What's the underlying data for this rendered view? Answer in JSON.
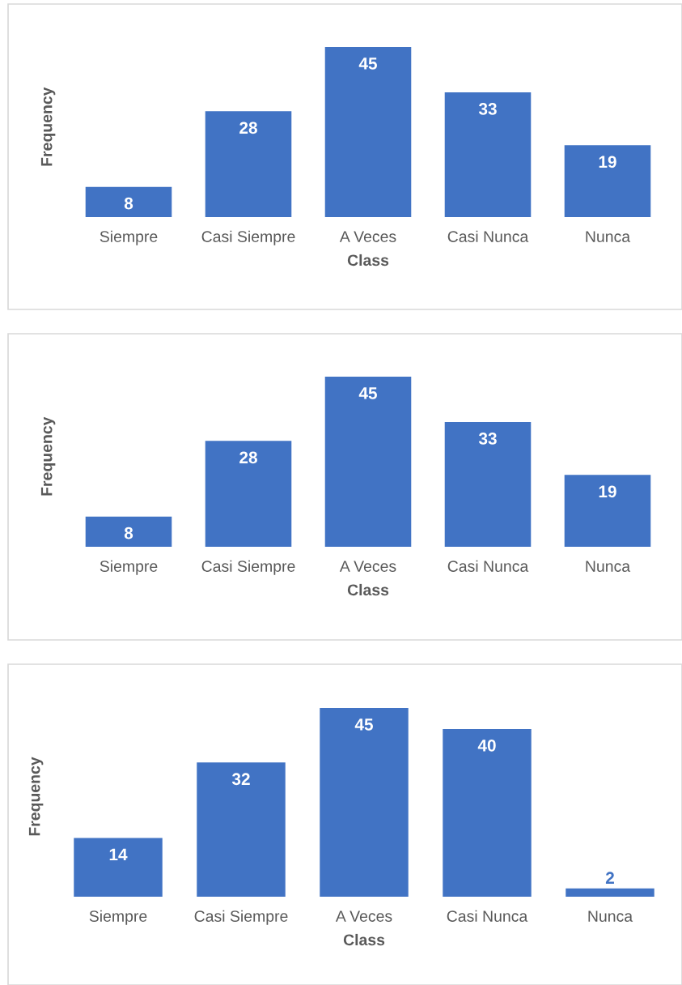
{
  "chart_data": [
    {
      "type": "bar",
      "xlabel": "Class",
      "ylabel": "Frequency",
      "categories": [
        "Siempre",
        "Casi Siempre",
        "A Veces",
        "Casi Nunca",
        "Nunca"
      ],
      "color": "#4173c4",
      "values": [
        8,
        28,
        45,
        33,
        19
      ],
      "data_labels": true
    },
    {
      "type": "bar",
      "xlabel": "Class",
      "ylabel": "Frequency",
      "categories": [
        "Siempre",
        "Casi Siempre",
        "A Veces",
        "Casi Nunca",
        "Nunca"
      ],
      "color": "#4173c4",
      "values": [
        8,
        28,
        45,
        33,
        19
      ],
      "data_labels": true
    },
    {
      "type": "bar",
      "xlabel": "Class",
      "ylabel": "Frequency",
      "categories": [
        "Siempre",
        "Casi Siempre",
        "A Veces",
        "Casi Nunca",
        "Nunca"
      ],
      "color": "#4173c4",
      "values": [
        14,
        32,
        45,
        40,
        2
      ],
      "data_labels": true
    }
  ]
}
